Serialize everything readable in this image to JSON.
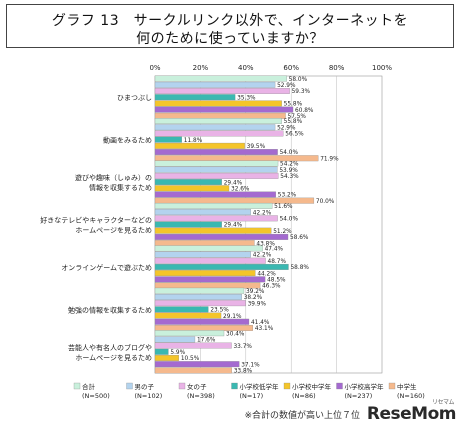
{
  "title": {
    "line1": "グラフ 13　サークルリンク以外で、インターネットを",
    "line2": "何のために使っていますか？"
  },
  "footnote": "※合計の数値が高い上位７位",
  "watermark": "ReseMom",
  "watermark_ruby": "リセマム",
  "chart_data": {
    "type": "bar",
    "orientation": "horizontal",
    "xlim": [
      0,
      100
    ],
    "x_ticks": [
      "0%",
      "20%",
      "40%",
      "60%",
      "80%",
      "100%"
    ],
    "grid": true,
    "legend_position": "bottom",
    "categories": [
      [
        "ひまつぶし"
      ],
      [
        "動画をみるため"
      ],
      [
        "遊びや趣味（しゅみ）の",
        "情報を収集するため"
      ],
      [
        "好きなテレビやキャラクターなどの",
        "ホームページを見るため"
      ],
      [
        "オンラインゲームで遊ぶため"
      ],
      [
        "勉強の情報を収集するため"
      ],
      [
        "芸能人や有名人のブログや",
        "ホームページを見るため"
      ]
    ],
    "series": [
      {
        "name": "合計",
        "n": "(N=500)",
        "color": "#c9f0dc",
        "values": [
          58.0,
          55.8,
          54.2,
          51.6,
          47.4,
          39.2,
          30.4
        ]
      },
      {
        "name": "男の子",
        "n": "(N=102)",
        "color": "#b3d3ee",
        "values": [
          52.9,
          52.9,
          53.9,
          42.2,
          42.2,
          38.2,
          17.6
        ]
      },
      {
        "name": "女の子",
        "n": "(N=398)",
        "color": "#e9b3e6",
        "values": [
          59.3,
          56.5,
          54.3,
          54.0,
          48.7,
          39.9,
          33.7
        ]
      },
      {
        "name": "小学校低学年",
        "n": "(N=17)",
        "color": "#3ab8b1",
        "values": [
          35.3,
          11.8,
          29.4,
          29.4,
          58.8,
          23.5,
          5.9
        ]
      },
      {
        "name": "小学校中学年",
        "n": "(N=86)",
        "color": "#f4c52a",
        "values": [
          55.8,
          39.5,
          32.6,
          51.2,
          44.2,
          29.1,
          10.5
        ]
      },
      {
        "name": "小学校高学年",
        "n": "(N=237)",
        "color": "#a46ad0",
        "values": [
          60.8,
          54.0,
          53.2,
          58.6,
          48.5,
          41.4,
          37.1
        ]
      },
      {
        "name": "中学生",
        "n": "(N=160)",
        "color": "#f5b98d",
        "values": [
          57.5,
          71.9,
          70.0,
          43.8,
          46.3,
          43.1,
          33.8
        ]
      }
    ]
  }
}
